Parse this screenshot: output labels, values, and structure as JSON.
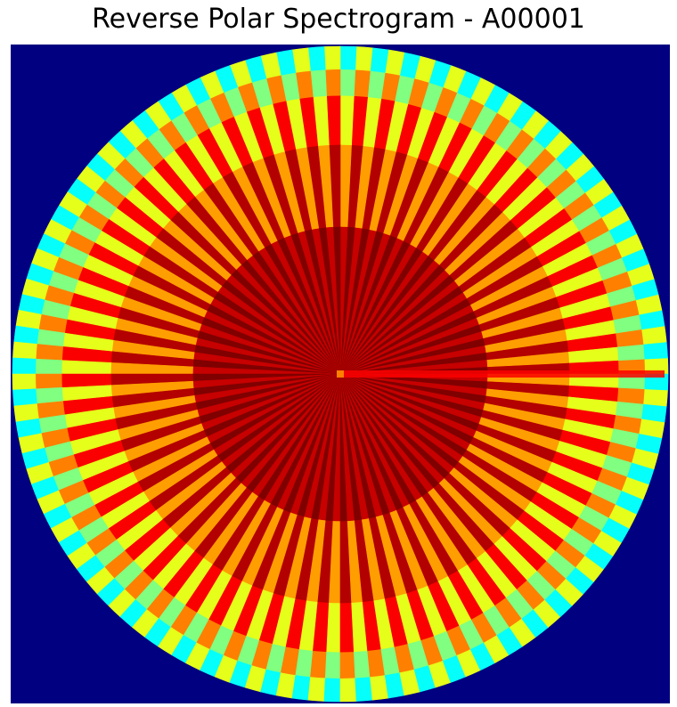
{
  "title": "Reverse Polar Spectrogram - A00001",
  "colors": {
    "background": "#000080",
    "page": "#ffffff"
  },
  "chart_data": {
    "type": "heatmap",
    "projection": "polar",
    "title": "Reverse Polar Spectrogram - A00001",
    "xlabel": "",
    "ylabel": "",
    "axes": "off",
    "grid": false,
    "colormap": "jet",
    "value_range": [
      0,
      1
    ],
    "angular_bins": 64,
    "radial_bands": [
      {
        "r": [
          0.0,
          0.45
        ],
        "peak": 1.0,
        "trough": 0.93
      },
      {
        "r": [
          0.45,
          0.7
        ],
        "peak": 0.95,
        "trough": 0.72
      },
      {
        "r": [
          0.7,
          0.85
        ],
        "peak": 0.88,
        "trough": 0.6
      },
      {
        "r": [
          0.85,
          0.93
        ],
        "peak": 0.75,
        "trough": 0.5
      },
      {
        "r": [
          0.93,
          1.0
        ],
        "peak": 0.6,
        "trough": 0.38
      }
    ],
    "notes_visible_feature": "bright horizontal streak along 0 degrees",
    "streak": {
      "angle_deg": 0,
      "value": 0.88
    }
  }
}
